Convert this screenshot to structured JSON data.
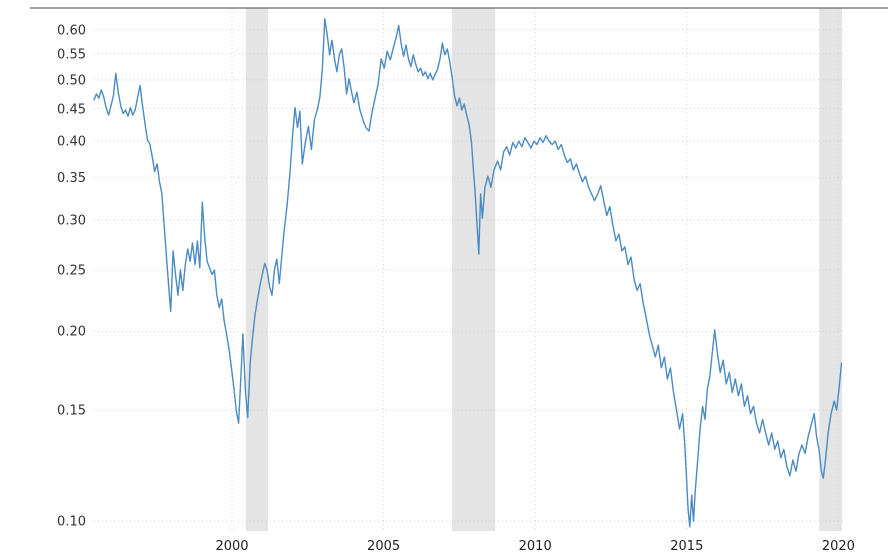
{
  "chart_data": {
    "type": "line",
    "x_domain": [
      1995.45,
      2020.25
    ],
    "y_domain": [
      0.0965,
      0.65
    ],
    "y_scale": "log",
    "x_ticks": [
      2000,
      2005,
      2010,
      2015,
      2020
    ],
    "y_ticks": [
      0.1,
      0.15,
      0.2,
      0.25,
      0.3,
      0.35,
      0.4,
      0.45,
      0.5,
      0.55,
      0.6
    ],
    "grid": true,
    "legend": false,
    "line_color": "#4a8bc2",
    "grid_color": "#cccccc",
    "vgrid_color": "#d4d4d4",
    "band_color": "#e4e4e4",
    "axis_border_color": "#444444",
    "background": "#ffffff",
    "recession_bands": [
      [
        2000.46,
        2001.19
      ],
      [
        2007.26,
        2008.68
      ],
      [
        2019.37,
        2020.12
      ]
    ],
    "points": [
      [
        1995.45,
        0.465
      ],
      [
        1995.53,
        0.475
      ],
      [
        1995.61,
        0.468
      ],
      [
        1995.69,
        0.482
      ],
      [
        1995.77,
        0.47
      ],
      [
        1995.85,
        0.452
      ],
      [
        1995.93,
        0.44
      ],
      [
        1996.01,
        0.455
      ],
      [
        1996.09,
        0.472
      ],
      [
        1996.17,
        0.512
      ],
      [
        1996.25,
        0.478
      ],
      [
        1996.33,
        0.455
      ],
      [
        1996.41,
        0.442
      ],
      [
        1996.49,
        0.448
      ],
      [
        1996.57,
        0.438
      ],
      [
        1996.65,
        0.452
      ],
      [
        1996.73,
        0.44
      ],
      [
        1996.81,
        0.448
      ],
      [
        1996.89,
        0.47
      ],
      [
        1996.97,
        0.49
      ],
      [
        1997.05,
        0.455
      ],
      [
        1997.13,
        0.428
      ],
      [
        1997.21,
        0.402
      ],
      [
        1997.29,
        0.396
      ],
      [
        1997.37,
        0.378
      ],
      [
        1997.45,
        0.358
      ],
      [
        1997.53,
        0.368
      ],
      [
        1997.61,
        0.345
      ],
      [
        1997.69,
        0.33
      ],
      [
        1997.77,
        0.292
      ],
      [
        1997.85,
        0.258
      ],
      [
        1997.93,
        0.23
      ],
      [
        1997.98,
        0.215
      ],
      [
        1998.06,
        0.268
      ],
      [
        1998.14,
        0.245
      ],
      [
        1998.22,
        0.228
      ],
      [
        1998.3,
        0.25
      ],
      [
        1998.38,
        0.232
      ],
      [
        1998.46,
        0.255
      ],
      [
        1998.54,
        0.27
      ],
      [
        1998.62,
        0.258
      ],
      [
        1998.7,
        0.276
      ],
      [
        1998.78,
        0.255
      ],
      [
        1998.86,
        0.278
      ],
      [
        1998.94,
        0.252
      ],
      [
        1999.02,
        0.32
      ],
      [
        1999.1,
        0.282
      ],
      [
        1999.18,
        0.258
      ],
      [
        1999.26,
        0.252
      ],
      [
        1999.34,
        0.246
      ],
      [
        1999.42,
        0.25
      ],
      [
        1999.5,
        0.228
      ],
      [
        1999.58,
        0.218
      ],
      [
        1999.66,
        0.225
      ],
      [
        1999.74,
        0.208
      ],
      [
        1999.82,
        0.198
      ],
      [
        1999.9,
        0.188
      ],
      [
        1999.98,
        0.175
      ],
      [
        2000.06,
        0.163
      ],
      [
        2000.14,
        0.15
      ],
      [
        2000.22,
        0.143
      ],
      [
        2000.3,
        0.172
      ],
      [
        2000.36,
        0.198
      ],
      [
        2000.44,
        0.162
      ],
      [
        2000.52,
        0.146
      ],
      [
        2000.6,
        0.178
      ],
      [
        2000.68,
        0.196
      ],
      [
        2000.76,
        0.212
      ],
      [
        2000.84,
        0.224
      ],
      [
        2000.92,
        0.236
      ],
      [
        2001.0,
        0.246
      ],
      [
        2001.08,
        0.256
      ],
      [
        2001.16,
        0.25
      ],
      [
        2001.24,
        0.235
      ],
      [
        2001.32,
        0.228
      ],
      [
        2001.4,
        0.25
      ],
      [
        2001.48,
        0.26
      ],
      [
        2001.56,
        0.238
      ],
      [
        2001.64,
        0.262
      ],
      [
        2001.72,
        0.288
      ],
      [
        2001.82,
        0.318
      ],
      [
        2001.92,
        0.36
      ],
      [
        2002.0,
        0.408
      ],
      [
        2002.08,
        0.452
      ],
      [
        2002.16,
        0.42
      ],
      [
        2002.24,
        0.446
      ],
      [
        2002.32,
        0.368
      ],
      [
        2002.42,
        0.398
      ],
      [
        2002.52,
        0.422
      ],
      [
        2002.62,
        0.388
      ],
      [
        2002.72,
        0.432
      ],
      [
        2002.82,
        0.45
      ],
      [
        2002.9,
        0.47
      ],
      [
        2002.98,
        0.52
      ],
      [
        2003.06,
        0.625
      ],
      [
        2003.14,
        0.59
      ],
      [
        2003.22,
        0.548
      ],
      [
        2003.3,
        0.578
      ],
      [
        2003.38,
        0.54
      ],
      [
        2003.46,
        0.515
      ],
      [
        2003.54,
        0.548
      ],
      [
        2003.62,
        0.56
      ],
      [
        2003.7,
        0.522
      ],
      [
        2003.78,
        0.475
      ],
      [
        2003.86,
        0.502
      ],
      [
        2003.94,
        0.48
      ],
      [
        2004.02,
        0.46
      ],
      [
        2004.12,
        0.478
      ],
      [
        2004.22,
        0.448
      ],
      [
        2004.32,
        0.432
      ],
      [
        2004.42,
        0.42
      ],
      [
        2004.52,
        0.415
      ],
      [
        2004.62,
        0.445
      ],
      [
        2004.72,
        0.468
      ],
      [
        2004.82,
        0.492
      ],
      [
        2004.92,
        0.54
      ],
      [
        2005.02,
        0.522
      ],
      [
        2005.12,
        0.555
      ],
      [
        2005.22,
        0.538
      ],
      [
        2005.32,
        0.562
      ],
      [
        2005.42,
        0.585
      ],
      [
        2005.5,
        0.61
      ],
      [
        2005.58,
        0.57
      ],
      [
        2005.66,
        0.545
      ],
      [
        2005.74,
        0.568
      ],
      [
        2005.82,
        0.54
      ],
      [
        2005.9,
        0.525
      ],
      [
        2005.98,
        0.548
      ],
      [
        2006.06,
        0.53
      ],
      [
        2006.14,
        0.515
      ],
      [
        2006.22,
        0.522
      ],
      [
        2006.3,
        0.508
      ],
      [
        2006.38,
        0.515
      ],
      [
        2006.46,
        0.502
      ],
      [
        2006.54,
        0.512
      ],
      [
        2006.62,
        0.5
      ],
      [
        2006.7,
        0.51
      ],
      [
        2006.78,
        0.52
      ],
      [
        2006.86,
        0.54
      ],
      [
        2006.94,
        0.572
      ],
      [
        2007.02,
        0.548
      ],
      [
        2007.1,
        0.56
      ],
      [
        2007.18,
        0.535
      ],
      [
        2007.26,
        0.505
      ],
      [
        2007.34,
        0.472
      ],
      [
        2007.42,
        0.455
      ],
      [
        2007.5,
        0.468
      ],
      [
        2007.58,
        0.448
      ],
      [
        2007.66,
        0.458
      ],
      [
        2007.74,
        0.44
      ],
      [
        2007.82,
        0.425
      ],
      [
        2007.9,
        0.398
      ],
      [
        2007.96,
        0.362
      ],
      [
        2008.02,
        0.33
      ],
      [
        2008.08,
        0.295
      ],
      [
        2008.14,
        0.265
      ],
      [
        2008.2,
        0.33
      ],
      [
        2008.26,
        0.302
      ],
      [
        2008.34,
        0.338
      ],
      [
        2008.44,
        0.352
      ],
      [
        2008.54,
        0.338
      ],
      [
        2008.64,
        0.36
      ],
      [
        2008.76,
        0.372
      ],
      [
        2008.86,
        0.36
      ],
      [
        2008.96,
        0.385
      ],
      [
        2009.06,
        0.392
      ],
      [
        2009.16,
        0.38
      ],
      [
        2009.26,
        0.398
      ],
      [
        2009.36,
        0.39
      ],
      [
        2009.46,
        0.4
      ],
      [
        2009.56,
        0.392
      ],
      [
        2009.66,
        0.405
      ],
      [
        2009.76,
        0.398
      ],
      [
        2009.86,
        0.39
      ],
      [
        2009.96,
        0.4
      ],
      [
        2010.06,
        0.395
      ],
      [
        2010.16,
        0.405
      ],
      [
        2010.26,
        0.398
      ],
      [
        2010.36,
        0.408
      ],
      [
        2010.46,
        0.4
      ],
      [
        2010.56,
        0.395
      ],
      [
        2010.66,
        0.4
      ],
      [
        2010.76,
        0.388
      ],
      [
        2010.86,
        0.395
      ],
      [
        2010.96,
        0.38
      ],
      [
        2011.06,
        0.37
      ],
      [
        2011.16,
        0.375
      ],
      [
        2011.26,
        0.36
      ],
      [
        2011.36,
        0.368
      ],
      [
        2011.46,
        0.355
      ],
      [
        2011.56,
        0.345
      ],
      [
        2011.66,
        0.352
      ],
      [
        2011.76,
        0.338
      ],
      [
        2011.86,
        0.33
      ],
      [
        2011.96,
        0.322
      ],
      [
        2012.06,
        0.33
      ],
      [
        2012.16,
        0.34
      ],
      [
        2012.26,
        0.322
      ],
      [
        2012.36,
        0.305
      ],
      [
        2012.46,
        0.315
      ],
      [
        2012.56,
        0.295
      ],
      [
        2012.66,
        0.278
      ],
      [
        2012.76,
        0.285
      ],
      [
        2012.86,
        0.268
      ],
      [
        2012.96,
        0.272
      ],
      [
        2013.06,
        0.255
      ],
      [
        2013.16,
        0.262
      ],
      [
        2013.26,
        0.242
      ],
      [
        2013.36,
        0.232
      ],
      [
        2013.46,
        0.238
      ],
      [
        2013.56,
        0.222
      ],
      [
        2013.66,
        0.21
      ],
      [
        2013.76,
        0.198
      ],
      [
        2013.86,
        0.19
      ],
      [
        2013.96,
        0.182
      ],
      [
        2014.06,
        0.19
      ],
      [
        2014.16,
        0.175
      ],
      [
        2014.26,
        0.182
      ],
      [
        2014.36,
        0.168
      ],
      [
        2014.46,
        0.175
      ],
      [
        2014.56,
        0.16
      ],
      [
        2014.66,
        0.15
      ],
      [
        2014.76,
        0.14
      ],
      [
        2014.86,
        0.148
      ],
      [
        2014.92,
        0.135
      ],
      [
        2014.98,
        0.12
      ],
      [
        2015.04,
        0.105
      ],
      [
        2015.1,
        0.098
      ],
      [
        2015.16,
        0.11
      ],
      [
        2015.22,
        0.1
      ],
      [
        2015.28,
        0.112
      ],
      [
        2015.36,
        0.125
      ],
      [
        2015.44,
        0.14
      ],
      [
        2015.52,
        0.152
      ],
      [
        2015.6,
        0.145
      ],
      [
        2015.68,
        0.162
      ],
      [
        2015.76,
        0.17
      ],
      [
        2015.84,
        0.185
      ],
      [
        2015.92,
        0.201
      ],
      [
        2016.0,
        0.186
      ],
      [
        2016.1,
        0.172
      ],
      [
        2016.2,
        0.18
      ],
      [
        2016.3,
        0.165
      ],
      [
        2016.4,
        0.172
      ],
      [
        2016.5,
        0.16
      ],
      [
        2016.6,
        0.168
      ],
      [
        2016.7,
        0.158
      ],
      [
        2016.8,
        0.165
      ],
      [
        2016.9,
        0.152
      ],
      [
        2017.0,
        0.158
      ],
      [
        2017.1,
        0.148
      ],
      [
        2017.2,
        0.152
      ],
      [
        2017.3,
        0.143
      ],
      [
        2017.4,
        0.138
      ],
      [
        2017.5,
        0.145
      ],
      [
        2017.6,
        0.138
      ],
      [
        2017.7,
        0.132
      ],
      [
        2017.8,
        0.138
      ],
      [
        2017.9,
        0.13
      ],
      [
        2018.0,
        0.134
      ],
      [
        2018.1,
        0.126
      ],
      [
        2018.2,
        0.13
      ],
      [
        2018.3,
        0.122
      ],
      [
        2018.4,
        0.118
      ],
      [
        2018.5,
        0.125
      ],
      [
        2018.6,
        0.12
      ],
      [
        2018.7,
        0.128
      ],
      [
        2018.8,
        0.132
      ],
      [
        2018.9,
        0.128
      ],
      [
        2019.0,
        0.136
      ],
      [
        2019.1,
        0.142
      ],
      [
        2019.2,
        0.148
      ],
      [
        2019.28,
        0.136
      ],
      [
        2019.36,
        0.13
      ],
      [
        2019.44,
        0.12
      ],
      [
        2019.5,
        0.117
      ],
      [
        2019.58,
        0.126
      ],
      [
        2019.66,
        0.138
      ],
      [
        2019.76,
        0.148
      ],
      [
        2019.86,
        0.155
      ],
      [
        2019.94,
        0.15
      ],
      [
        2020.02,
        0.162
      ],
      [
        2020.1,
        0.178
      ]
    ]
  }
}
